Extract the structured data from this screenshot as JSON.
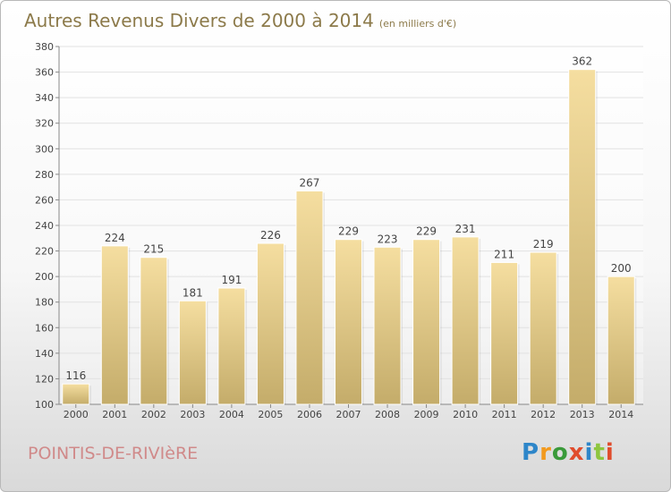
{
  "header": {
    "title": "Autres Revenus Divers de 2000 à 2014",
    "unit": "(en milliers d'€)"
  },
  "footer": {
    "place": "POINTIS-DE-RIVIèRE",
    "logo": "Proxiti"
  },
  "colors": {
    "bar_light": "#f5dea0",
    "bar_dark": "#c4ac6a",
    "title": "#8c7a4a",
    "place": "#d08a8a",
    "logo_letters": [
      "#2e86c9",
      "#f29a1e",
      "#3a9a3a",
      "#e04c2c",
      "#2e86c9",
      "#8ec63f",
      "#e04c2c"
    ]
  },
  "chart_data": {
    "type": "bar",
    "title": "Autres Revenus Divers de 2000 à 2014",
    "subtitle": "(en milliers d'€)",
    "xlabel": "",
    "ylabel": "",
    "categories": [
      "2000",
      "2001",
      "2002",
      "2003",
      "2004",
      "2005",
      "2006",
      "2007",
      "2008",
      "2009",
      "2010",
      "2011",
      "2012",
      "2013",
      "2014"
    ],
    "values": [
      116,
      224,
      215,
      181,
      191,
      226,
      267,
      229,
      223,
      229,
      231,
      211,
      219,
      362,
      200
    ],
    "ylim": [
      100,
      380
    ],
    "yticks": [
      100,
      120,
      140,
      160,
      180,
      200,
      220,
      240,
      260,
      280,
      300,
      320,
      340,
      360,
      380
    ],
    "grid": true,
    "legend": "none"
  }
}
